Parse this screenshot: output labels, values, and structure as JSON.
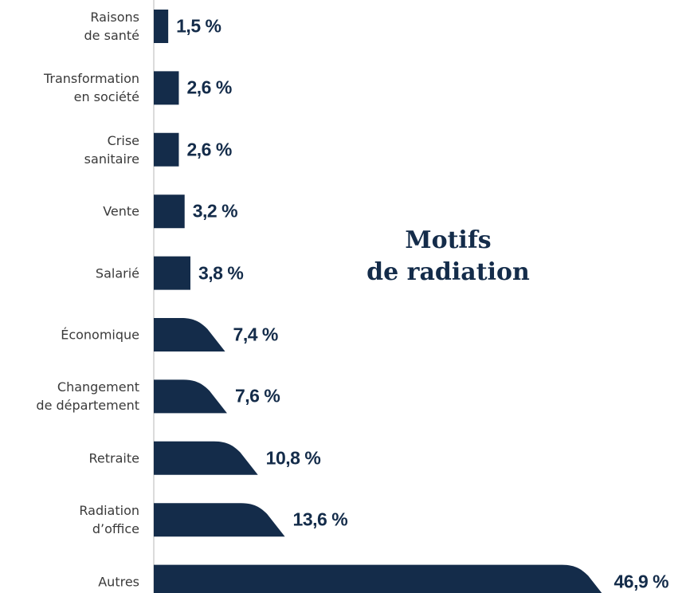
{
  "chart_data": {
    "type": "bar",
    "orientation": "horizontal",
    "title": "Motifs\nde radiation",
    "categories": [
      "Raisons\nde santé",
      "Transformation\nen société",
      "Crise\nsanitaire",
      "Vente",
      "Salarié",
      "Économique",
      "Changement\nde département",
      "Retraite",
      "Radiation\nd’office",
      "Autres"
    ],
    "values": [
      1.5,
      2.6,
      2.6,
      3.2,
      3.8,
      7.4,
      7.6,
      10.8,
      13.6,
      46.9
    ],
    "value_labels": [
      "1,5 %",
      "2,6 %",
      "2,6 %",
      "3,2 %",
      "3,8 %",
      "7,4 %",
      "7,6 %",
      "10,8 %",
      "13,6 %",
      "46,9 %"
    ],
    "color": "#142c4a"
  }
}
